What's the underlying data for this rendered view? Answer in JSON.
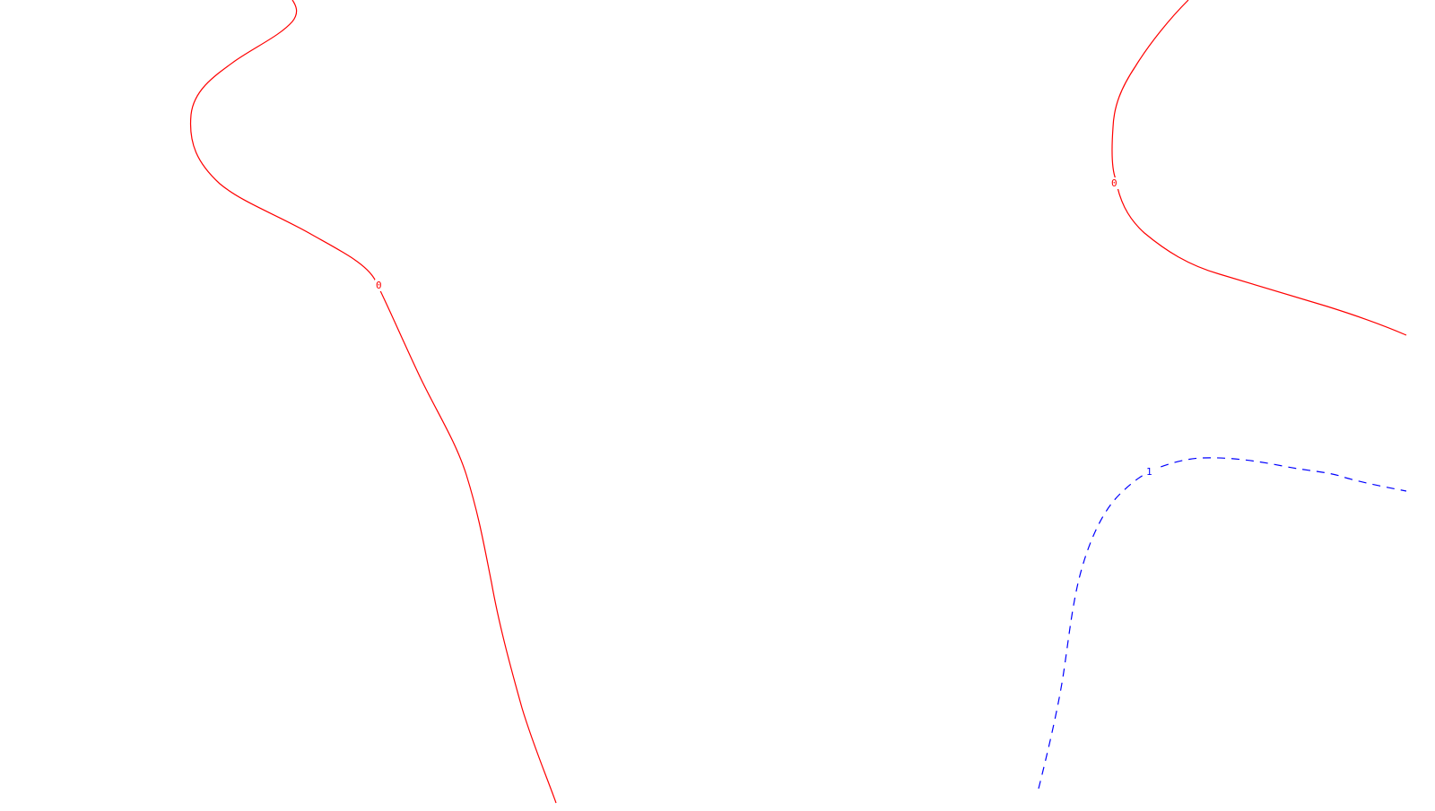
{
  "map": {
    "contours": [
      {
        "id": "contour-left",
        "label": "0",
        "color": "#ff0000",
        "style": "solid"
      },
      {
        "id": "contour-top-right",
        "label": "0",
        "color": "#ff0000",
        "style": "solid"
      },
      {
        "id": "contour-bottom-right",
        "label": "1",
        "color": "#0000ff",
        "style": "dashed"
      }
    ]
  }
}
